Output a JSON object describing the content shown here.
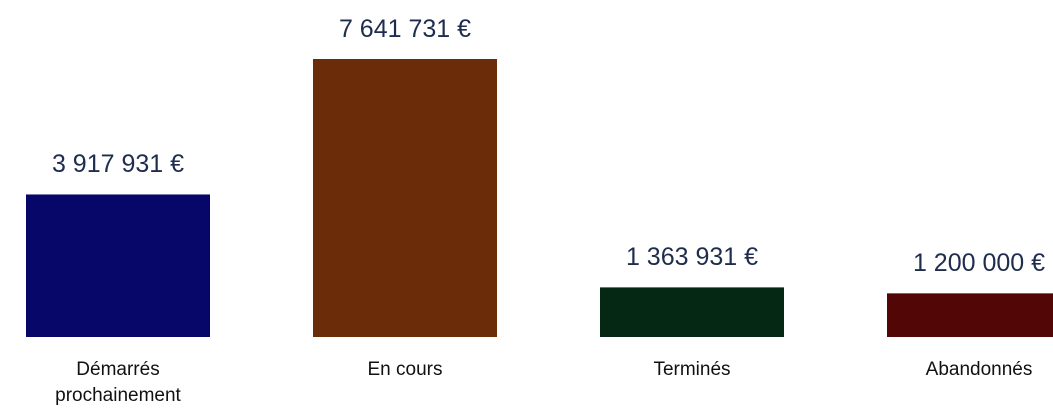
{
  "chart_data": {
    "type": "bar",
    "categories": [
      "Démarrés prochainement",
      "En cours",
      "Terminés",
      "Abandonnés"
    ],
    "values": [
      3917931,
      7641731,
      1363931,
      1200000
    ],
    "value_labels": [
      "3 917 931 €",
      "7 641 731 €",
      "1 363 931 €",
      "1 200 000 €"
    ],
    "colors": [
      "#07076a",
      "#6b2c0a",
      "#042814",
      "#520606"
    ]
  }
}
